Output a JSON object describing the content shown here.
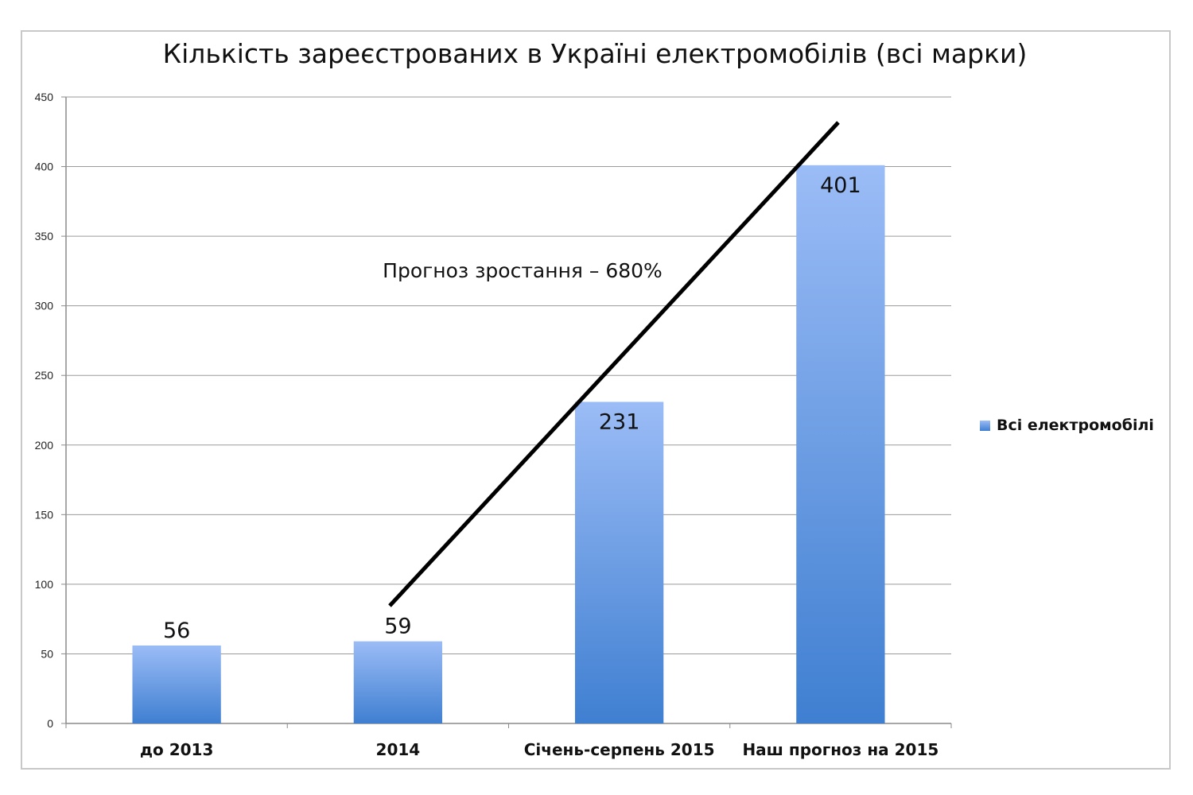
{
  "chart_data": {
    "type": "bar",
    "title": "Кількість зареєстрованих в Україні електромобілів (всі марки)",
    "categories": [
      "до 2013",
      "2014",
      "Січень-серпень 2015",
      "Наш прогноз на 2015"
    ],
    "series": [
      {
        "name": "Всі електромобілі",
        "values": [
          56,
          59,
          231,
          401
        ]
      }
    ],
    "data_labels": [
      "56",
      "59",
      "231",
      "401"
    ],
    "yticks": [
      "0",
      "50",
      "100",
      "150",
      "200",
      "250",
      "300",
      "350",
      "400",
      "450"
    ],
    "ylim": [
      0,
      450
    ],
    "grid": true,
    "legend_position": "right",
    "annotation": "Прогноз зростання – 680%",
    "bar_color_top": "#9bbcf6",
    "bar_color_bottom": "#3f7fd1"
  }
}
